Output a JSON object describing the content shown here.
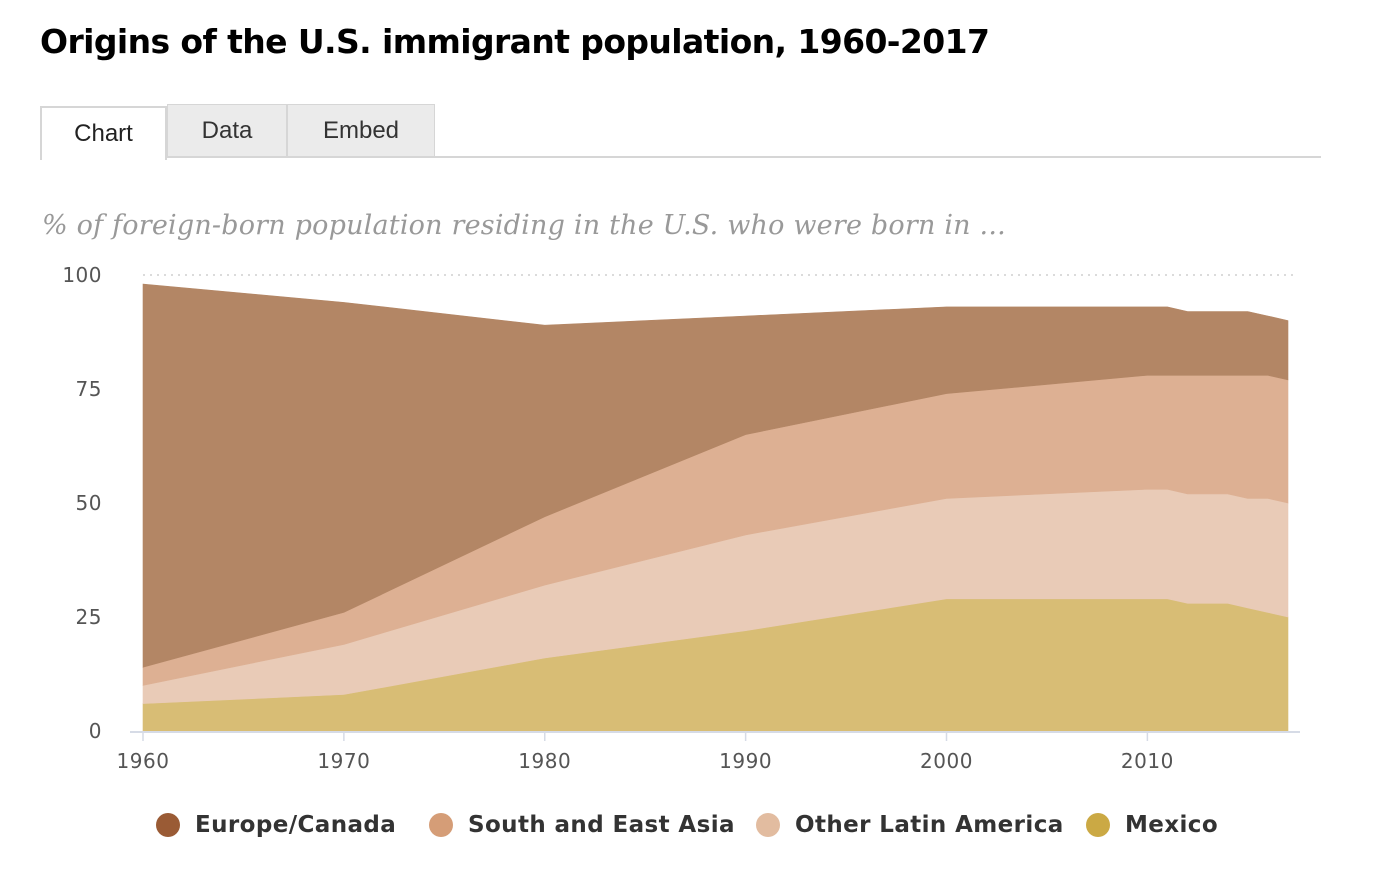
{
  "header": {
    "title": "Origins of the U.S. immigrant population, 1960-2017"
  },
  "tabs": [
    {
      "label": "Chart",
      "active": true
    },
    {
      "label": "Data",
      "active": false
    },
    {
      "label": "Embed",
      "active": false
    }
  ],
  "chart_data": {
    "type": "area",
    "stacked": true,
    "title": "Origins of the U.S. immigrant population, 1960-2017",
    "subtitle": "% of foreign-born population residing in the U.S. who were born in ...",
    "xlabel": "",
    "ylabel": "",
    "x": [
      1960,
      1970,
      1980,
      1990,
      2000,
      2010,
      2011,
      2012,
      2013,
      2014,
      2015,
      2016,
      2017
    ],
    "x_ticks": [
      1960,
      1970,
      1980,
      1990,
      2000,
      2010
    ],
    "y_ticks": [
      0,
      25,
      50,
      75,
      100
    ],
    "xlim": [
      1960,
      2017
    ],
    "ylim": [
      0,
      100
    ],
    "grid": "top line only, dotted",
    "legend_position": "bottom",
    "series": [
      {
        "name": "Mexico",
        "color": "#d8bd75",
        "legend_color": "#cba944",
        "values": [
          6,
          8,
          16,
          22,
          29,
          29,
          29,
          28,
          28,
          28,
          27,
          26,
          25
        ]
      },
      {
        "name": "Other Latin America",
        "color": "#e9cbb7",
        "legend_color": "#e2bca0",
        "values": [
          4,
          11,
          16,
          21,
          22,
          24,
          24,
          24,
          24,
          24,
          24,
          25,
          25
        ]
      },
      {
        "name": "South and East Asia",
        "color": "#ddb093",
        "legend_color": "#d59d77",
        "values": [
          4,
          7,
          15,
          22,
          23,
          25,
          25,
          26,
          26,
          26,
          27,
          27,
          27
        ]
      },
      {
        "name": "Europe/Canada",
        "color": "#b38665",
        "legend_color": "#9a5b35",
        "values": [
          84,
          68,
          42,
          26,
          19,
          15,
          15,
          14,
          14,
          14,
          14,
          13,
          13
        ]
      }
    ],
    "legend_order": [
      "Europe/Canada",
      "South and East Asia",
      "Other Latin America",
      "Mexico"
    ]
  }
}
